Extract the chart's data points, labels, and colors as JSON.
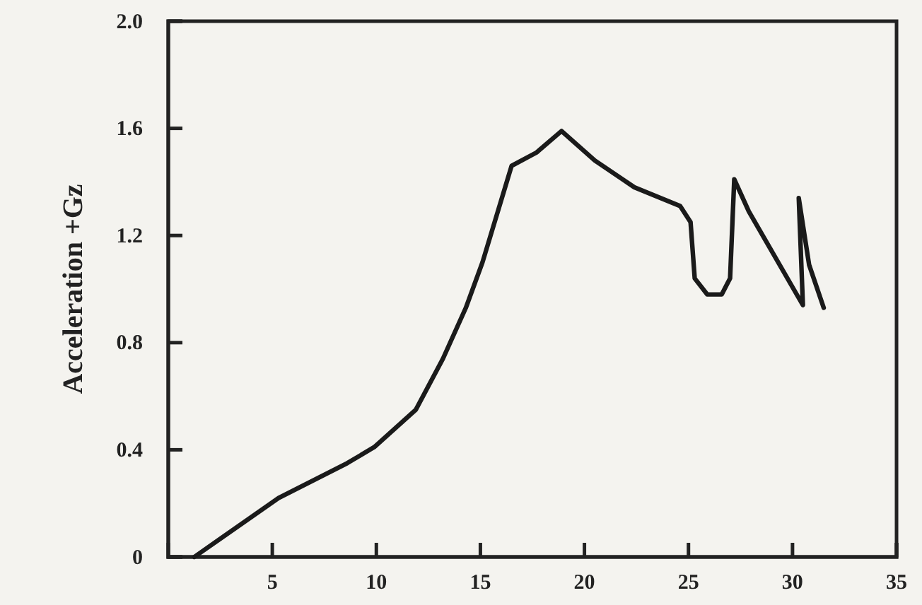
{
  "chart_data": {
    "type": "line",
    "ylabel": "Acceleration +Gz",
    "x": [
      1.25,
      5.3,
      8.6,
      9.9,
      11.9,
      13.2,
      14.3,
      15.1,
      16.5,
      17.7,
      18.9,
      20.5,
      22.4,
      24.6,
      25.1,
      25.3,
      25.9,
      26.6,
      27.0,
      27.2,
      27.9,
      30.5,
      30.3,
      30.8,
      31.5
    ],
    "values": [
      0,
      0.22,
      0.35,
      0.41,
      0.55,
      0.74,
      0.93,
      1.1,
      1.46,
      1.51,
      1.59,
      1.48,
      1.38,
      1.31,
      1.25,
      1.04,
      0.98,
      0.98,
      1.04,
      1.41,
      1.29,
      0.94,
      1.34,
      1.09,
      0.93
    ],
    "color": "#1a1a1a",
    "xlim": [
      0,
      35
    ],
    "xticks": [
      5,
      10,
      15,
      20,
      25,
      30,
      35
    ],
    "ylim": [
      0,
      2.0
    ],
    "yticks": [
      0,
      0.4,
      0.8,
      1.2,
      1.6,
      {
        "value": 2.0,
        "label": "2.0"
      }
    ],
    "marker": "none",
    "line_style": "solid"
  }
}
